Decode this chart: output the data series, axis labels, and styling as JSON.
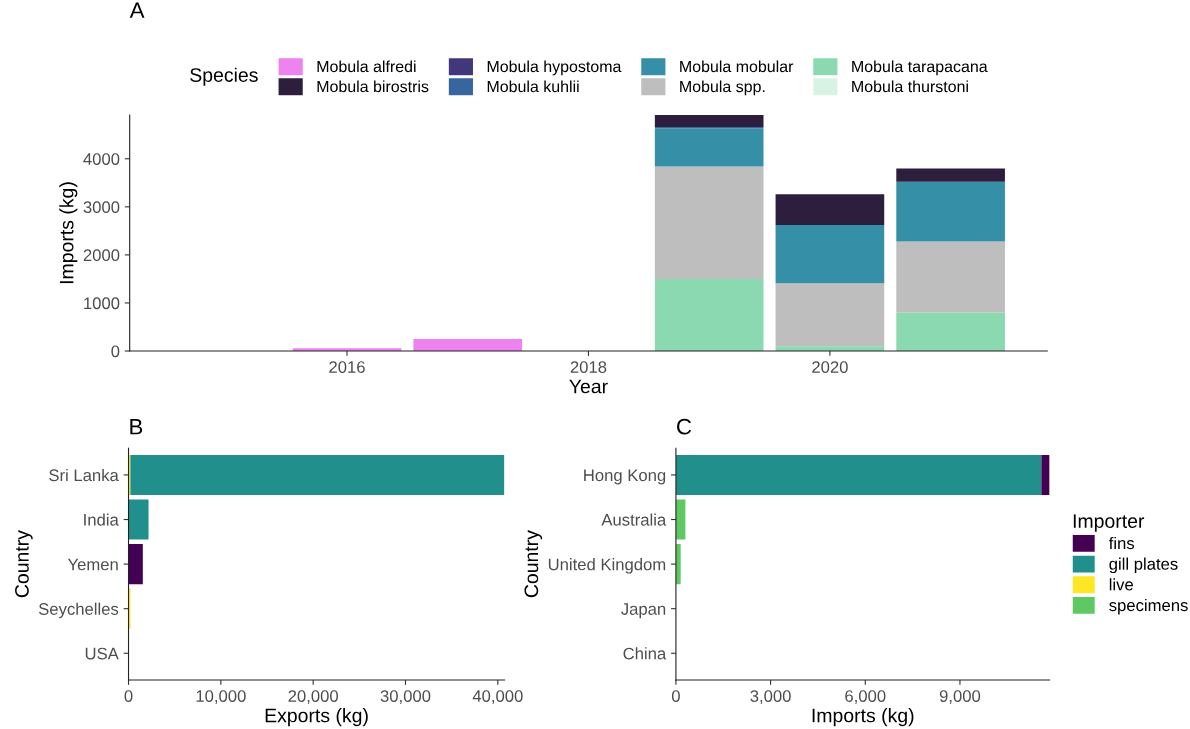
{
  "chart_data": [
    {
      "type": "bar",
      "stacked": true,
      "title": "A",
      "xlabel": "Year",
      "ylabel": "Imports (kg)",
      "legend_title": "Species",
      "legend": "top",
      "grid": false,
      "x": [
        2016,
        2017,
        2019,
        2020,
        2021
      ],
      "xlim": [
        2014.2,
        2021.8
      ],
      "xticks": [
        2016,
        2018,
        2020
      ],
      "ylim": [
        0,
        4910
      ],
      "yticks": [
        0,
        1000,
        2000,
        3000,
        4000
      ],
      "series": [
        {
          "name": "Mobula thurstoni",
          "color": "#d8f3e4",
          "values": [
            null,
            null,
            null,
            null,
            null
          ]
        },
        {
          "name": "Mobula tarapacana",
          "color": "#8ad9b0",
          "values": [
            null,
            null,
            1500,
            100,
            800
          ]
        },
        {
          "name": "Mobula spp.",
          "color": "#bebebe",
          "values": [
            null,
            null,
            2340,
            1310,
            1480
          ]
        },
        {
          "name": "Mobula mobular",
          "color": "#348fa7",
          "values": [
            null,
            null,
            790,
            1210,
            1240
          ]
        },
        {
          "name": "Mobula kuhlii",
          "color": "#37659e",
          "values": [
            null,
            null,
            30,
            null,
            null
          ]
        },
        {
          "name": "Mobula hypostoma",
          "color": "#40387a",
          "values": [
            null,
            null,
            null,
            null,
            null
          ]
        },
        {
          "name": "Mobula birostris",
          "color": "#2d1e3e",
          "values": [
            null,
            null,
            250,
            640,
            280
          ]
        },
        {
          "name": "Mobula alfredi",
          "color": "#ee82ee",
          "values": [
            60,
            250,
            null,
            null,
            null
          ]
        }
      ]
    },
    {
      "type": "bar",
      "stacked": true,
      "orientation": "horizontal",
      "title": "B",
      "xlabel": "Exports (kg)",
      "ylabel": "Country",
      "grid": false,
      "categories": [
        "Sri Lanka",
        "India",
        "Yemen",
        "Seychelles",
        "USA"
      ],
      "xlim": [
        0,
        40730
      ],
      "xticks": [
        0,
        {
          "value": 10000,
          "label": "10,000"
        },
        {
          "value": 20000,
          "label": "20,000"
        },
        {
          "value": 30000,
          "label": "30,000"
        },
        {
          "value": 40000,
          "label": "40,000"
        }
      ],
      "series": [
        {
          "color": "#fde725",
          "values": [
            200,
            null,
            null,
            200,
            null
          ]
        },
        {
          "color": "#21908c",
          "values": [
            40500,
            2170,
            null,
            null,
            null
          ]
        },
        {
          "color": "#440154",
          "values": [
            null,
            null,
            1550,
            null,
            null
          ]
        }
      ]
    },
    {
      "type": "bar",
      "stacked": true,
      "orientation": "horizontal",
      "title": "C",
      "xlabel": "Imports (kg)",
      "ylabel": "Country",
      "legend_title": "Importer",
      "legend": "right",
      "grid": false,
      "categories": [
        "Hong Kong",
        "Australia",
        "United Kingdom",
        "Japan",
        "China"
      ],
      "xlim": [
        0,
        11840
      ],
      "xticks": [
        0,
        {
          "value": 3000,
          "label": "3,000"
        },
        {
          "value": 6000,
          "label": "6,000"
        },
        {
          "value": 9000,
          "label": "9,000"
        }
      ],
      "series": [
        {
          "name": "specimens",
          "color": "#5ec962",
          "values": [
            null,
            300,
            150,
            null,
            null
          ]
        },
        {
          "name": "live",
          "color": "#fde725",
          "values": [
            null,
            null,
            null,
            null,
            null
          ]
        },
        {
          "name": "gill plates",
          "color": "#21908c",
          "values": [
            11580,
            null,
            null,
            null,
            null
          ]
        },
        {
          "name": "fins",
          "color": "#440154",
          "values": [
            260,
            null,
            null,
            null,
            null
          ]
        }
      ]
    }
  ]
}
